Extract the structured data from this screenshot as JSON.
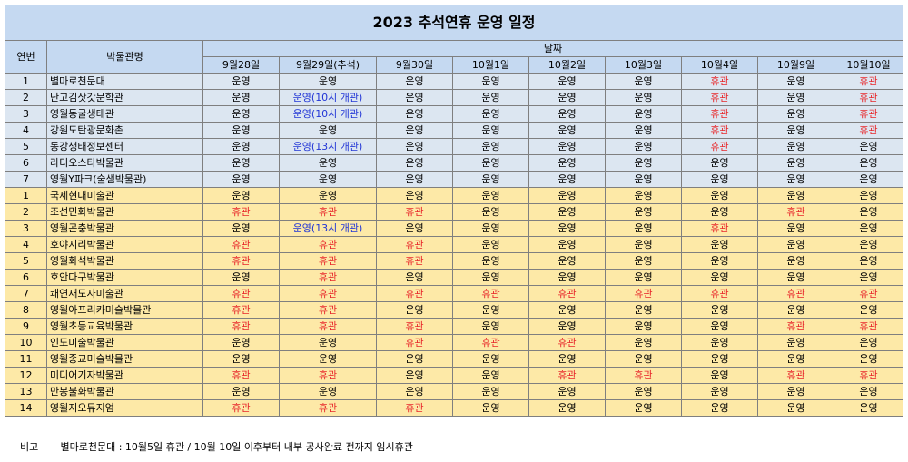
{
  "title": "2023 추석연휴 운영 일정",
  "headers": {
    "no": "연번",
    "museum": "박물관명",
    "date_group": "날짜",
    "dates": [
      "9월28일",
      "9월29일(추석)",
      "9월30일",
      "10월1일",
      "10월2일",
      "10월3일",
      "10월4일",
      "10월9일",
      "10월10일"
    ]
  },
  "rows": [
    {
      "no": "1",
      "name": "별마로천문대",
      "group": "blue",
      "cells": [
        "운영",
        "운영",
        "운영",
        "운영",
        "운영",
        "운영",
        "휴관",
        "운영",
        "휴관"
      ]
    },
    {
      "no": "2",
      "name": "난고김삿갓문학관",
      "group": "blue",
      "cells": [
        "운영",
        "운영(10시 개관)",
        "운영",
        "운영",
        "운영",
        "운영",
        "휴관",
        "운영",
        "휴관"
      ]
    },
    {
      "no": "3",
      "name": "영월동굴생태관",
      "group": "blue",
      "cells": [
        "운영",
        "운영(10시 개관)",
        "운영",
        "운영",
        "운영",
        "운영",
        "휴관",
        "운영",
        "휴관"
      ]
    },
    {
      "no": "4",
      "name": "강원도탄광문화촌",
      "group": "blue",
      "cells": [
        "운영",
        "운영",
        "운영",
        "운영",
        "운영",
        "운영",
        "휴관",
        "운영",
        "휴관"
      ]
    },
    {
      "no": "5",
      "name": "동강생태정보센터",
      "group": "blue",
      "cells": [
        "운영",
        "운영(13시 개관)",
        "운영",
        "운영",
        "운영",
        "운영",
        "휴관",
        "운영",
        "운영"
      ]
    },
    {
      "no": "6",
      "name": "라디오스타박물관",
      "group": "blue",
      "cells": [
        "운영",
        "운영",
        "운영",
        "운영",
        "운영",
        "운영",
        "운영",
        "운영",
        "운영"
      ]
    },
    {
      "no": "7",
      "name": "영월Y파크(술샘박물관)",
      "group": "blue",
      "cells": [
        "운영",
        "운영",
        "운영",
        "운영",
        "운영",
        "운영",
        "운영",
        "운영",
        "운영"
      ]
    },
    {
      "no": "1",
      "name": "국제현대미술관",
      "group": "yellow",
      "cells": [
        "운영",
        "운영",
        "운영",
        "운영",
        "운영",
        "운영",
        "운영",
        "운영",
        "운영"
      ]
    },
    {
      "no": "2",
      "name": "조선민화박물관",
      "group": "yellow",
      "cells": [
        "휴관",
        "휴관",
        "휴관",
        "운영",
        "운영",
        "운영",
        "운영",
        "휴관",
        "운영"
      ]
    },
    {
      "no": "3",
      "name": "영월곤충박물관",
      "group": "yellow",
      "cells": [
        "운영",
        "운영(13시 개관)",
        "운영",
        "운영",
        "운영",
        "운영",
        "휴관",
        "운영",
        "운영"
      ]
    },
    {
      "no": "4",
      "name": "호야지리박물관",
      "group": "yellow",
      "cells": [
        "휴관",
        "휴관",
        "휴관",
        "운영",
        "운영",
        "운영",
        "운영",
        "운영",
        "운영"
      ]
    },
    {
      "no": "5",
      "name": "영월화석박물관",
      "group": "yellow",
      "cells": [
        "휴관",
        "휴관",
        "휴관",
        "운영",
        "운영",
        "운영",
        "운영",
        "운영",
        "운영"
      ]
    },
    {
      "no": "6",
      "name": "호안다구박물관",
      "group": "yellow",
      "cells": [
        "운영",
        "휴관",
        "운영",
        "운영",
        "운영",
        "운영",
        "운영",
        "운영",
        "운영"
      ]
    },
    {
      "no": "7",
      "name": "쾌연재도자미술관",
      "group": "yellow",
      "cells": [
        "휴관",
        "휴관",
        "휴관",
        "휴관",
        "휴관",
        "휴관",
        "휴관",
        "휴관",
        "휴관"
      ]
    },
    {
      "no": "8",
      "name": "영월아프리카미술박물관",
      "group": "yellow",
      "cells": [
        "휴관",
        "휴관",
        "운영",
        "운영",
        "운영",
        "운영",
        "운영",
        "운영",
        "운영"
      ]
    },
    {
      "no": "9",
      "name": "영월초등교육박물관",
      "group": "yellow",
      "cells": [
        "휴관",
        "휴관",
        "휴관",
        "운영",
        "운영",
        "운영",
        "운영",
        "휴관",
        "휴관"
      ]
    },
    {
      "no": "10",
      "name": "인도미술박물관",
      "group": "yellow",
      "cells": [
        "운영",
        "운영",
        "휴관",
        "휴관",
        "휴관",
        "운영",
        "운영",
        "운영",
        "운영"
      ]
    },
    {
      "no": "11",
      "name": "영월종교미술박물관",
      "group": "yellow",
      "cells": [
        "운영",
        "운영",
        "운영",
        "운영",
        "운영",
        "운영",
        "운영",
        "운영",
        "운영"
      ]
    },
    {
      "no": "12",
      "name": "미디어기자박물관",
      "group": "yellow",
      "cells": [
        "휴관",
        "휴관",
        "운영",
        "운영",
        "휴관",
        "휴관",
        "운영",
        "휴관",
        "휴관"
      ]
    },
    {
      "no": "13",
      "name": "만봉불화박물관",
      "group": "yellow",
      "cells": [
        "운영",
        "운영",
        "운영",
        "운영",
        "운영",
        "운영",
        "운영",
        "운영",
        "운영"
      ]
    },
    {
      "no": "14",
      "name": "영월지오뮤지엄",
      "group": "yellow",
      "cells": [
        "휴관",
        "휴관",
        "휴관",
        "운영",
        "운영",
        "운영",
        "운영",
        "운영",
        "운영"
      ]
    }
  ],
  "note": {
    "label": "비고",
    "text": "별마로천문대 : 10월5일 휴관 / 10월 10일 이후부터 내부 공사완료 전까지 임시휴관"
  },
  "colors": {
    "header_bg": "#c5d9f1",
    "group_public_bg": "#dce6f1",
    "group_private_bg": "#fde9a7",
    "closed_text": "#e8282b",
    "partial_text": "#2236d6"
  }
}
